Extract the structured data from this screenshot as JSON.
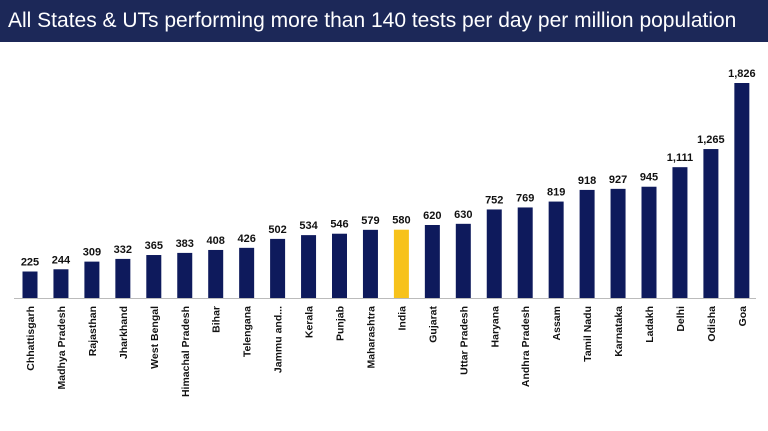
{
  "header": {
    "title": "All States & UTs performing more than 140 tests per day per million population"
  },
  "colors": {
    "bar": "#0e1a5c",
    "highlight": "#f7c21b",
    "header": "#1c2858"
  },
  "chart_data": {
    "type": "bar",
    "title": "All States & UTs performing more than 140 tests per day per million population",
    "categories": [
      "Chhattisgarh",
      "Madhya Pradesh",
      "Rajasthan",
      "Jharkhand",
      "West Bengal",
      "Himachal Pradesh",
      "Bihar",
      "Telengana",
      "Jammu and...",
      "Kerala",
      "Punjab",
      "Maharashtra",
      "India",
      "Gujarat",
      "Uttar Pradesh",
      "Haryana",
      "Andhra Pradesh",
      "Assam",
      "Tamil Nadu",
      "Karnataka",
      "Ladakh",
      "Delhi",
      "Odisha",
      "Goa"
    ],
    "values": [
      225,
      244,
      309,
      332,
      365,
      383,
      408,
      426,
      502,
      534,
      546,
      579,
      580,
      620,
      630,
      752,
      769,
      819,
      918,
      927,
      945,
      1111,
      1265,
      1826
    ],
    "value_labels": [
      "225",
      "244",
      "309",
      "332",
      "365",
      "383",
      "408",
      "426",
      "502",
      "534",
      "546",
      "579",
      "580",
      "620",
      "630",
      "752",
      "769",
      "819",
      "918",
      "927",
      "945",
      "1,111",
      "1,265",
      "1,826"
    ],
    "highlight": "India",
    "ylim": [
      0,
      1826
    ],
    "grid": false
  }
}
